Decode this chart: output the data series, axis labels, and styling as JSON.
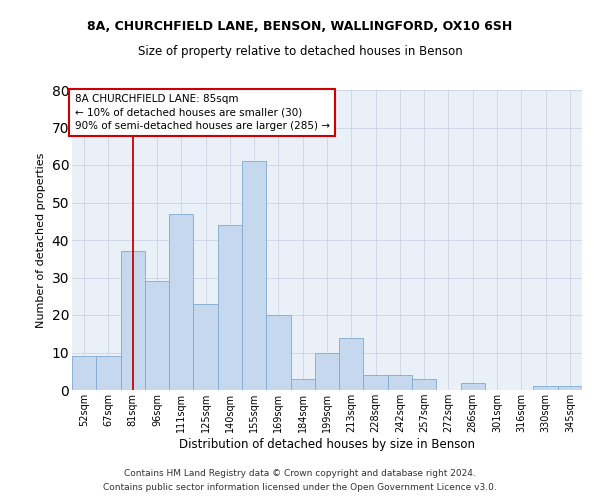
{
  "title1": "8A, CHURCHFIELD LANE, BENSON, WALLINGFORD, OX10 6SH",
  "title2": "Size of property relative to detached houses in Benson",
  "xlabel": "Distribution of detached houses by size in Benson",
  "ylabel": "Number of detached properties",
  "categories": [
    "52sqm",
    "67sqm",
    "81sqm",
    "96sqm",
    "111sqm",
    "125sqm",
    "140sqm",
    "155sqm",
    "169sqm",
    "184sqm",
    "199sqm",
    "213sqm",
    "228sqm",
    "242sqm",
    "257sqm",
    "272sqm",
    "286sqm",
    "301sqm",
    "316sqm",
    "330sqm",
    "345sqm"
  ],
  "values": [
    9,
    9,
    37,
    29,
    47,
    23,
    44,
    61,
    20,
    3,
    10,
    14,
    4,
    4,
    3,
    0,
    2,
    0,
    0,
    1,
    1
  ],
  "bar_color": "#c5d8ed",
  "bar_edgecolor": "#7eaad0",
  "grid_color": "#d0d8e8",
  "background_color": "#eaf0f8",
  "annotation_text": "8A CHURCHFIELD LANE: 85sqm\n← 10% of detached houses are smaller (30)\n90% of semi-detached houses are larger (285) →",
  "annotation_box_color": "#ffffff",
  "annotation_box_edgecolor": "#cc0000",
  "redline_x": 2,
  "ylim": [
    0,
    80
  ],
  "yticks": [
    0,
    10,
    20,
    30,
    40,
    50,
    60,
    70,
    80
  ],
  "footer1": "Contains HM Land Registry data © Crown copyright and database right 2024.",
  "footer2": "Contains public sector information licensed under the Open Government Licence v3.0.",
  "title1_fontsize": 9,
  "title2_fontsize": 8.5,
  "ylabel_fontsize": 8,
  "xlabel_fontsize": 8.5,
  "tick_fontsize": 7,
  "ann_fontsize": 7.5,
  "footer_fontsize": 6.5
}
